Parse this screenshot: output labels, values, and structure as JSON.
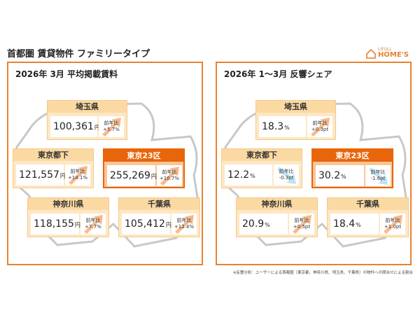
{
  "header": {
    "title": "首都圏 賃貸物件 ファミリータイプ",
    "logo_top": "LIFULL",
    "logo_bottom": "HOME'S"
  },
  "panels": [
    {
      "title": "2026年 3月 平均掲載賃料",
      "regions": [
        {
          "name": "埼玉県",
          "value": "100,361",
          "unit": "円",
          "change_label": "前年比",
          "change": "+5.7%"
        },
        {
          "name": "東京都下",
          "value": "121,557",
          "unit": "円",
          "change_label": "前年比",
          "change": "+14.1%"
        },
        {
          "name": "東京23区",
          "value": "255,269",
          "unit": "円",
          "change_label": "前年比",
          "change": "+10.7%"
        },
        {
          "name": "神奈川県",
          "value": "118,155",
          "unit": "円",
          "change_label": "前年比",
          "change": "+7.7%"
        },
        {
          "name": "千葉県",
          "value": "105,412",
          "unit": "円",
          "change_label": "前年比",
          "change": "+12.4%"
        }
      ]
    },
    {
      "title": "2026年 1～3月 反響シェア",
      "regions": [
        {
          "name": "埼玉県",
          "value": "18.3",
          "unit": "%",
          "change_label": "前年比",
          "change": "+0.3pt"
        },
        {
          "name": "東京都下",
          "value": "12.2",
          "unit": "%",
          "change_label": "前年比",
          "change": "-0.3pt"
        },
        {
          "name": "東京23区",
          "value": "30.2",
          "unit": "%",
          "change_label": "前年比",
          "change": "-1.6pt"
        },
        {
          "name": "神奈川県",
          "value": "20.9",
          "unit": "%",
          "change_label": "前年比",
          "change": "+0.5pt"
        },
        {
          "name": "千葉県",
          "value": "18.4",
          "unit": "%",
          "change_label": "前年比",
          "change": "+1.0pt"
        }
      ]
    }
  ],
  "footnote": "※反響分析：ユーザーによる首都圏（東京都、神奈川県、埼玉県、千葉県）の物件への問合せによる割合"
}
